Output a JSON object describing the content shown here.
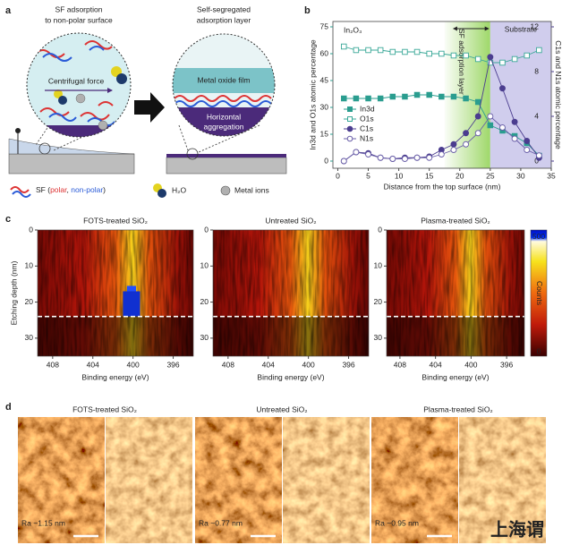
{
  "panel_labels": [
    "a",
    "b",
    "c",
    "d"
  ],
  "panel_a": {
    "left_caption": [
      "SF adsorption",
      "to non-polar surface"
    ],
    "right_caption": [
      "Self-segregated",
      "adsorption layer"
    ],
    "force_label": "Centrifugal force",
    "film_label": "Metal oxide film",
    "aggregation_label": [
      "Horizontal",
      "aggregation"
    ],
    "legend": {
      "sf_prefix": "SF (",
      "polar": "polar",
      "separator": ", ",
      "nonpolar": "non-polar",
      "sf_suffix": ")",
      "water": "H₂O",
      "ions": "Metal ions"
    }
  },
  "chart_data": [
    {
      "type": "line",
      "annotation": "In₂O₃",
      "x_label": "Distance from the top surface (nm)",
      "y_label": "In3d and O1s atomic percentage",
      "y2_label": "C1s and N1s atomic percentage",
      "xlim": [
        -0.8,
        35
      ],
      "xticks": [
        0,
        5,
        10,
        15,
        20,
        25,
        30,
        35
      ],
      "ylim": [
        -4,
        78
      ],
      "yticks": [
        0,
        15,
        30,
        45,
        60,
        75
      ],
      "y2lim": [
        -0.64,
        12.48
      ],
      "y2ticks": [
        0,
        4,
        8,
        12
      ],
      "spans": [
        {
          "label": "SF adsorption layer",
          "from": 17.5,
          "to": 25,
          "color": "#9fd86a"
        },
        {
          "label": "Substrate",
          "from": 25,
          "to": 35,
          "color": "#c8c4ea"
        }
      ],
      "x": [
        1,
        3,
        5,
        7,
        9,
        11,
        13,
        15,
        17,
        19,
        21,
        23,
        25,
        27,
        29,
        31,
        33
      ],
      "series": [
        {
          "name": "In3d",
          "color": "#2a9d8f",
          "marker": "square",
          "filled": true,
          "values": [
            35,
            35,
            35,
            35,
            36,
            36,
            37,
            37,
            36,
            36,
            35,
            33,
            20,
            17,
            14,
            10,
            3
          ]
        },
        {
          "name": "O1s",
          "color": "#3aa898",
          "marker": "square",
          "filled": false,
          "values": [
            64,
            62,
            62,
            62,
            61,
            61,
            61,
            60,
            60,
            59,
            59,
            57,
            55,
            55,
            57,
            59,
            62
          ]
        },
        {
          "name": "C1s",
          "color": "#4b3d8f",
          "marker": "circle",
          "filled": true,
          "axis": "y2",
          "values": [
            0,
            0.8,
            0.7,
            0.3,
            0.2,
            0.3,
            0.3,
            0.4,
            1,
            1.5,
            2.5,
            4,
            9.3,
            6.5,
            3.5,
            1.8,
            0.3
          ]
        },
        {
          "name": "N1s",
          "color": "#6a5fa8",
          "marker": "circle",
          "filled": false,
          "axis": "y2",
          "values": [
            0,
            0.8,
            0.6,
            0.3,
            0.2,
            0.2,
            0.3,
            0.3,
            0.6,
            1,
            1.5,
            2.5,
            4,
            3,
            2,
            1,
            0.5
          ]
        }
      ]
    },
    {
      "type": "heatmap",
      "title": "FOTS-treated SiO₂",
      "x_label": "Binding energy (eV)",
      "y_label": "Etching depth (nm)",
      "xlim": [
        409.5,
        394
      ],
      "xticks": [
        408,
        404,
        400,
        396
      ],
      "ylim": [
        35,
        0
      ],
      "yticks": [
        0,
        10,
        20,
        30
      ],
      "hline": 24
    },
    {
      "type": "heatmap",
      "title": "Untreated SiO₂",
      "x_label": "Binding energy (eV)",
      "xlim": [
        409.5,
        394
      ],
      "xticks": [
        408,
        404,
        400,
        396
      ],
      "ylim": [
        35,
        0
      ],
      "yticks": [
        0,
        10,
        20,
        30
      ],
      "hline": 24
    },
    {
      "type": "heatmap",
      "title": "Plasma-treated SiO₂",
      "x_label": "Binding energy (eV)",
      "xlim": [
        409.5,
        394
      ],
      "xticks": [
        408,
        404,
        400,
        396
      ],
      "ylim": [
        35,
        0
      ],
      "yticks": [
        0,
        10,
        20,
        30
      ],
      "hline": 24
    }
  ],
  "colorbar": {
    "label": "Counts",
    "lim": [
      0,
      530
    ],
    "ticks": [
      0,
      500
    ]
  },
  "panel_d": {
    "titles": [
      "FOTS-treated SiO₂",
      "Untreated SiO₂",
      "Plasma-treated SiO₂"
    ],
    "roughness": [
      "Ra ~1.15 nm",
      "Ra ~0.77 nm",
      "Ra ~0.95 nm"
    ]
  },
  "watermark": "上海谓"
}
